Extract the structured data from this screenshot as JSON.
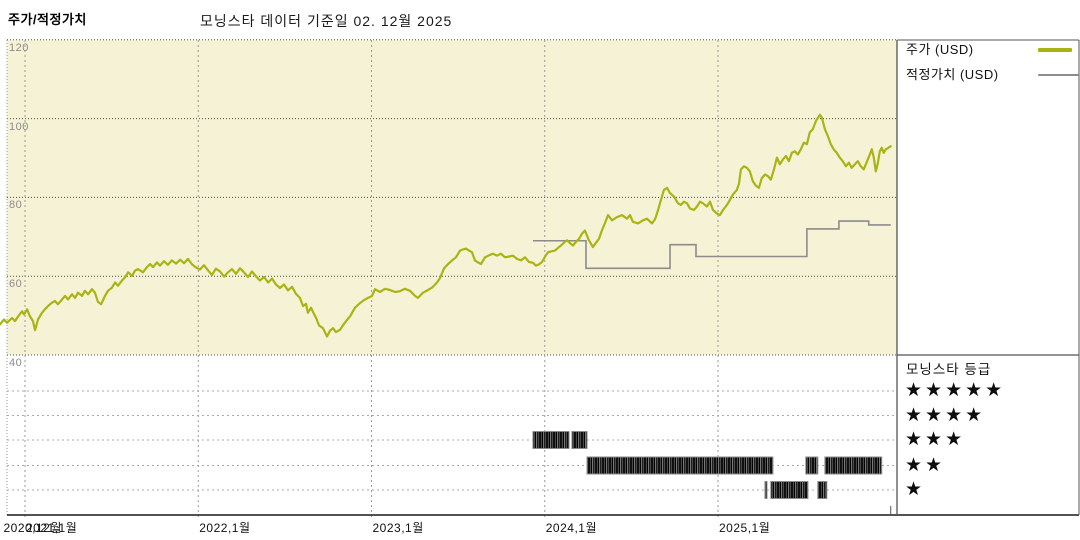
{
  "page": {
    "title": "주가/적정가치",
    "header": "모닝스타 데이터 기준일 02. 12월 2025"
  },
  "legend": {
    "items": [
      {
        "label": "주가 (USD)",
        "color": "#a9b414"
      },
      {
        "label": "적정가치 (USD)",
        "color": "#8c8c8c"
      }
    ]
  },
  "rating_panel": {
    "title": "모닝스타 등급",
    "star_char": "★",
    "rows": [
      5,
      4,
      3,
      2,
      1
    ]
  },
  "colors": {
    "plot_bg": "#f6f2d5",
    "price_line": "#a9b414",
    "fair_value_line": "#8c8c8c",
    "grid_major": "#4d4d4d",
    "grid_year": "#9a9a9a",
    "grid_star_rows": "#a8a8a8",
    "axis_line": "#1a1a1a",
    "panel_border": "#555555",
    "band_border": "#8a8a8a"
  },
  "chart_data": {
    "type": "line",
    "title": "주가/적정가치",
    "subtitle": "모닝스타 데이터 기준일 02. 12월 2025",
    "x_axis": {
      "range_years": [
        2020.856,
        2026.0
      ],
      "ticks": [
        {
          "label": "2020,12월",
          "year": 2020.87
        },
        {
          "label": "2021,1월",
          "year": 2021.0
        },
        {
          "label": "2022,1월",
          "year": 2022.0
        },
        {
          "label": "2023,1월",
          "year": 2023.0
        },
        {
          "label": "2024,1월",
          "year": 2024.0
        },
        {
          "label": "2025,1월",
          "year": 2025.0
        }
      ]
    },
    "y_axis": {
      "ticks": [
        120,
        100,
        80,
        60,
        40
      ],
      "range": [
        40,
        120
      ],
      "unit": "USD"
    },
    "grid": true,
    "legend_position": "right",
    "series": [
      {
        "name": "주가 (USD)",
        "kind": "price",
        "points": [
          [
            2020.856,
            47.8
          ],
          [
            2020.879,
            49.0
          ],
          [
            2020.896,
            48.2
          ],
          [
            2020.925,
            49.4
          ],
          [
            2020.942,
            48.6
          ],
          [
            2020.96,
            49.8
          ],
          [
            2020.983,
            51.1
          ],
          [
            2020.994,
            50.3
          ],
          [
            2021.012,
            51.6
          ],
          [
            2021.029,
            49.8
          ],
          [
            2021.046,
            48.6
          ],
          [
            2021.058,
            46.3
          ],
          [
            2021.075,
            49.0
          ],
          [
            2021.098,
            50.7
          ],
          [
            2021.115,
            51.6
          ],
          [
            2021.133,
            52.4
          ],
          [
            2021.156,
            53.3
          ],
          [
            2021.173,
            53.7
          ],
          [
            2021.19,
            52.9
          ],
          [
            2021.214,
            54.1
          ],
          [
            2021.231,
            55.0
          ],
          [
            2021.248,
            54.1
          ],
          [
            2021.271,
            55.4
          ],
          [
            2021.289,
            54.5
          ],
          [
            2021.306,
            55.8
          ],
          [
            2021.329,
            55.0
          ],
          [
            2021.346,
            56.3
          ],
          [
            2021.364,
            55.4
          ],
          [
            2021.387,
            56.7
          ],
          [
            2021.404,
            55.8
          ],
          [
            2021.421,
            53.5
          ],
          [
            2021.439,
            52.9
          ],
          [
            2021.462,
            55.0
          ],
          [
            2021.479,
            56.3
          ],
          [
            2021.502,
            57.1
          ],
          [
            2021.52,
            58.4
          ],
          [
            2021.537,
            57.6
          ],
          [
            2021.56,
            58.9
          ],
          [
            2021.577,
            59.7
          ],
          [
            2021.595,
            61.0
          ],
          [
            2021.618,
            60.1
          ],
          [
            2021.635,
            61.4
          ],
          [
            2021.652,
            61.8
          ],
          [
            2021.681,
            61.0
          ],
          [
            2021.704,
            62.3
          ],
          [
            2021.722,
            63.1
          ],
          [
            2021.739,
            62.3
          ],
          [
            2021.762,
            63.5
          ],
          [
            2021.779,
            62.7
          ],
          [
            2021.802,
            63.8
          ],
          [
            2021.825,
            62.9
          ],
          [
            2021.848,
            64.0
          ],
          [
            2021.872,
            63.2
          ],
          [
            2021.895,
            64.2
          ],
          [
            2021.918,
            63.3
          ],
          [
            2021.941,
            64.4
          ],
          [
            2021.964,
            63.0
          ],
          [
            2021.987,
            62.2
          ],
          [
            2022.01,
            61.7
          ],
          [
            2022.033,
            62.8
          ],
          [
            2022.056,
            61.5
          ],
          [
            2022.079,
            60.3
          ],
          [
            2022.102,
            61.9
          ],
          [
            2022.126,
            61.2
          ],
          [
            2022.149,
            59.9
          ],
          [
            2022.172,
            61.0
          ],
          [
            2022.195,
            61.8
          ],
          [
            2022.218,
            60.6
          ],
          [
            2022.241,
            62.0
          ],
          [
            2022.264,
            61.0
          ],
          [
            2022.287,
            59.8
          ],
          [
            2022.31,
            61.2
          ],
          [
            2022.333,
            60.0
          ],
          [
            2022.356,
            58.9
          ],
          [
            2022.38,
            59.8
          ],
          [
            2022.403,
            58.4
          ],
          [
            2022.426,
            59.4
          ],
          [
            2022.449,
            57.9
          ],
          [
            2022.472,
            57.0
          ],
          [
            2022.495,
            57.9
          ],
          [
            2022.518,
            56.4
          ],
          [
            2022.541,
            57.3
          ],
          [
            2022.564,
            55.5
          ],
          [
            2022.587,
            54.5
          ],
          [
            2022.605,
            52.4
          ],
          [
            2022.622,
            53.0
          ],
          [
            2022.633,
            50.7
          ],
          [
            2022.651,
            52.0
          ],
          [
            2022.662,
            51.0
          ],
          [
            2022.68,
            49.4
          ],
          [
            2022.697,
            47.5
          ],
          [
            2022.72,
            46.8
          ],
          [
            2022.743,
            44.7
          ],
          [
            2022.761,
            46.2
          ],
          [
            2022.778,
            46.8
          ],
          [
            2022.795,
            45.8
          ],
          [
            2022.818,
            46.4
          ],
          [
            2022.836,
            47.6
          ],
          [
            2022.864,
            49.2
          ],
          [
            2022.876,
            49.8
          ],
          [
            2022.905,
            52.0
          ],
          [
            2022.934,
            53.2
          ],
          [
            2022.963,
            54.1
          ],
          [
            2023.003,
            55.0
          ],
          [
            2023.02,
            56.7
          ],
          [
            2023.049,
            56.0
          ],
          [
            2023.078,
            56.8
          ],
          [
            2023.107,
            56.5
          ],
          [
            2023.136,
            56.0
          ],
          [
            2023.164,
            56.2
          ],
          [
            2023.193,
            56.8
          ],
          [
            2023.222,
            56.3
          ],
          [
            2023.251,
            55.0
          ],
          [
            2023.268,
            54.5
          ],
          [
            2023.297,
            55.8
          ],
          [
            2023.326,
            56.5
          ],
          [
            2023.349,
            57.1
          ],
          [
            2023.378,
            58.4
          ],
          [
            2023.395,
            59.5
          ],
          [
            2023.419,
            62.0
          ],
          [
            2023.442,
            63.1
          ],
          [
            2023.465,
            64.0
          ],
          [
            2023.488,
            64.8
          ],
          [
            2023.511,
            66.5
          ],
          [
            2023.528,
            66.8
          ],
          [
            2023.545,
            67.0
          ],
          [
            2023.563,
            66.5
          ],
          [
            2023.58,
            66.1
          ],
          [
            2023.597,
            64.0
          ],
          [
            2023.615,
            63.5
          ],
          [
            2023.632,
            63.1
          ],
          [
            2023.655,
            64.8
          ],
          [
            2023.678,
            65.3
          ],
          [
            2023.701,
            65.7
          ],
          [
            2023.724,
            65.2
          ],
          [
            2023.747,
            65.7
          ],
          [
            2023.771,
            64.8
          ],
          [
            2023.794,
            65.0
          ],
          [
            2023.817,
            65.2
          ],
          [
            2023.84,
            64.4
          ],
          [
            2023.863,
            64.0
          ],
          [
            2023.886,
            64.8
          ],
          [
            2023.909,
            63.6
          ],
          [
            2023.932,
            63.4
          ],
          [
            2023.949,
            62.7
          ],
          [
            2023.967,
            63.0
          ],
          [
            2023.984,
            63.6
          ],
          [
            2024.002,
            65.0
          ],
          [
            2024.019,
            66.1
          ],
          [
            2024.036,
            66.3
          ],
          [
            2024.059,
            66.5
          ],
          [
            2024.077,
            67.2
          ],
          [
            2024.094,
            67.8
          ],
          [
            2024.111,
            68.5
          ],
          [
            2024.128,
            69.1
          ],
          [
            2024.146,
            68.4
          ],
          [
            2024.163,
            67.8
          ],
          [
            2024.18,
            68.7
          ],
          [
            2024.198,
            69.5
          ],
          [
            2024.215,
            70.8
          ],
          [
            2024.232,
            71.6
          ],
          [
            2024.255,
            69.1
          ],
          [
            2024.278,
            67.4
          ],
          [
            2024.296,
            68.5
          ],
          [
            2024.313,
            69.5
          ],
          [
            2024.33,
            71.6
          ],
          [
            2024.348,
            73.5
          ],
          [
            2024.365,
            75.5
          ],
          [
            2024.388,
            74.2
          ],
          [
            2024.417,
            75.0
          ],
          [
            2024.446,
            75.5
          ],
          [
            2024.475,
            74.6
          ],
          [
            2024.492,
            75.5
          ],
          [
            2024.509,
            73.8
          ],
          [
            2024.538,
            73.4
          ],
          [
            2024.567,
            74.2
          ],
          [
            2024.59,
            74.6
          ],
          [
            2024.619,
            73.4
          ],
          [
            2024.637,
            74.5
          ],
          [
            2024.654,
            76.8
          ],
          [
            2024.671,
            79.4
          ],
          [
            2024.688,
            81.9
          ],
          [
            2024.706,
            82.4
          ],
          [
            2024.723,
            81.1
          ],
          [
            2024.746,
            80.2
          ],
          [
            2024.769,
            78.5
          ],
          [
            2024.786,
            78.1
          ],
          [
            2024.804,
            78.9
          ],
          [
            2024.821,
            78.5
          ],
          [
            2024.838,
            77.2
          ],
          [
            2024.861,
            76.8
          ],
          [
            2024.879,
            77.7
          ],
          [
            2024.896,
            78.9
          ],
          [
            2024.913,
            78.5
          ],
          [
            2024.936,
            77.7
          ],
          [
            2024.954,
            78.9
          ],
          [
            2024.971,
            76.8
          ],
          [
            2024.994,
            75.9
          ],
          [
            2025.011,
            75.5
          ],
          [
            2025.029,
            76.8
          ],
          [
            2025.052,
            78.1
          ],
          [
            2025.069,
            79.4
          ],
          [
            2025.086,
            80.7
          ],
          [
            2025.109,
            81.9
          ],
          [
            2025.121,
            83.5
          ],
          [
            2025.132,
            87.1
          ],
          [
            2025.15,
            87.9
          ],
          [
            2025.167,
            87.5
          ],
          [
            2025.184,
            86.6
          ],
          [
            2025.201,
            84.1
          ],
          [
            2025.219,
            83.0
          ],
          [
            2025.236,
            82.4
          ],
          [
            2025.253,
            84.9
          ],
          [
            2025.271,
            85.8
          ],
          [
            2025.288,
            85.4
          ],
          [
            2025.305,
            84.5
          ],
          [
            2025.323,
            87.1
          ],
          [
            2025.34,
            90.1
          ],
          [
            2025.357,
            88.4
          ],
          [
            2025.374,
            89.6
          ],
          [
            2025.392,
            90.5
          ],
          [
            2025.409,
            89.2
          ],
          [
            2025.426,
            91.3
          ],
          [
            2025.444,
            91.7
          ],
          [
            2025.461,
            90.9
          ],
          [
            2025.478,
            92.2
          ],
          [
            2025.496,
            93.9
          ],
          [
            2025.513,
            93.5
          ],
          [
            2025.53,
            96.5
          ],
          [
            2025.547,
            97.3
          ],
          [
            2025.565,
            99.4
          ],
          [
            2025.588,
            101.0
          ],
          [
            2025.599,
            100.3
          ],
          [
            2025.617,
            97.3
          ],
          [
            2025.634,
            95.6
          ],
          [
            2025.651,
            93.5
          ],
          [
            2025.668,
            92.2
          ],
          [
            2025.686,
            91.3
          ],
          [
            2025.703,
            90.1
          ],
          [
            2025.72,
            89.2
          ],
          [
            2025.738,
            87.9
          ],
          [
            2025.755,
            88.8
          ],
          [
            2025.772,
            87.5
          ],
          [
            2025.79,
            88.4
          ],
          [
            2025.807,
            89.2
          ],
          [
            2025.824,
            87.9
          ],
          [
            2025.841,
            87.1
          ],
          [
            2025.859,
            89.0
          ],
          [
            2025.876,
            90.9
          ],
          [
            2025.888,
            92.2
          ],
          [
            2025.899,
            90.1
          ],
          [
            2025.911,
            86.6
          ],
          [
            2025.922,
            88.5
          ],
          [
            2025.934,
            91.7
          ],
          [
            2025.945,
            92.6
          ],
          [
            2025.957,
            91.3
          ],
          [
            2025.968,
            92.2
          ],
          [
            2025.98,
            92.5
          ],
          [
            2025.997,
            93.0
          ]
        ]
      },
      {
        "name": "적정가치 (USD)",
        "kind": "step",
        "segments": [
          {
            "start": 2023.932,
            "end": 2024.238,
            "value": 69
          },
          {
            "start": 2024.238,
            "end": 2024.723,
            "value": 62
          },
          {
            "start": 2024.723,
            "end": 2024.873,
            "value": 68
          },
          {
            "start": 2024.873,
            "end": 2025.513,
            "value": 65
          },
          {
            "start": 2025.513,
            "end": 2025.698,
            "value": 72
          },
          {
            "start": 2025.698,
            "end": 2025.87,
            "value": 74
          },
          {
            "start": 2025.87,
            "end": 2025.997,
            "value": 73
          }
        ]
      }
    ],
    "rating_history": [
      {
        "stars": 3,
        "start": 2023.932,
        "end": 2024.14
      },
      {
        "stars": 3,
        "start": 2024.157,
        "end": 2024.244
      },
      {
        "stars": 2,
        "start": 2024.244,
        "end": 2025.317
      },
      {
        "stars": 1,
        "start": 2025.271,
        "end": 2025.282
      },
      {
        "stars": 1,
        "start": 2025.305,
        "end": 2025.519
      },
      {
        "stars": 2,
        "start": 2025.507,
        "end": 2025.576
      },
      {
        "stars": 1,
        "start": 2025.576,
        "end": 2025.628
      },
      {
        "stars": 2,
        "start": 2025.617,
        "end": 2025.945
      }
    ]
  }
}
